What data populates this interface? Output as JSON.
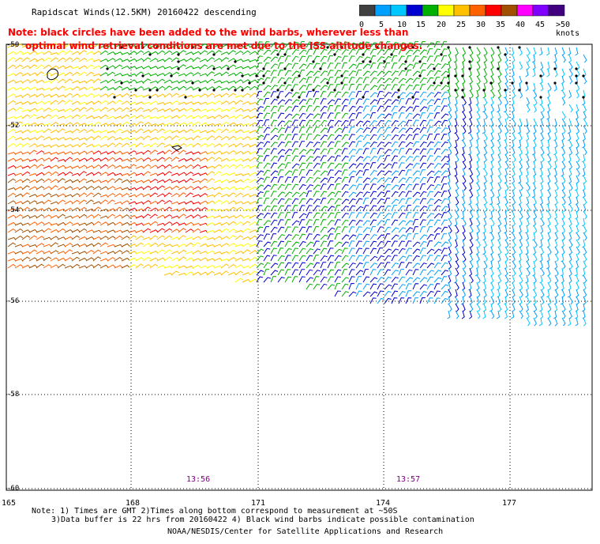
{
  "title": "Rapidscat Winds(12.5KM) 20160422 descending",
  "note_lines": [
    "Note: black circles have been added to the wind barbs, wherever less than",
    "optimal wind retrieval conditions are met due to the ISS altitude changes."
  ],
  "legend": {
    "labels": [
      "0",
      "5",
      "10",
      "15",
      "20",
      "25",
      "30",
      "35",
      "40",
      "45",
      ">50 knots"
    ],
    "colors": [
      "#404040",
      "#00a0ff",
      "#00c8ff",
      "#0000d0",
      "#00b000",
      "#ffff00",
      "#ffc000",
      "#ff6000",
      "#ff0000",
      "#a05000",
      "#ff00ff",
      "#8000ff",
      "#400080"
    ]
  },
  "latitude_labels": [
    "-50",
    "-52",
    "-54",
    "-56",
    "-58",
    "-60"
  ],
  "longitude_labels": [
    "165",
    "168",
    "171",
    "174",
    "177"
  ],
  "time_labels": [
    "13:56",
    "13:57"
  ],
  "footnote_lines": [
    "Note: 1) Times are GMT 2)Times along bottom correspond to measurement at ~50S",
    "3)Data buffer is 22 hrs from 20160422 4) Black wind barbs indicate possible contamination"
  ],
  "credit": "NOAA/NESDIS/Center for Satellite Applications and Research"
}
